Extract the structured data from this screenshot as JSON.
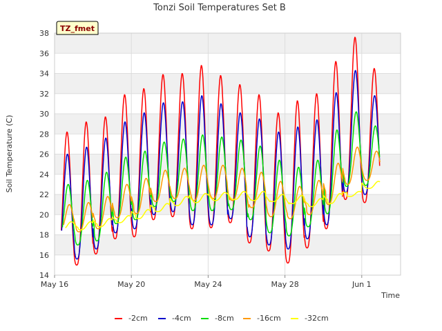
{
  "chart_data": {
    "type": "line",
    "title": "Tonzi Soil Temperatures Set B",
    "xlabel": "Time",
    "ylabel": "Soil Temperature (C)",
    "ylim": [
      14,
      38
    ],
    "xlim": [
      0,
      18
    ],
    "y_ticks": [
      14,
      16,
      18,
      20,
      22,
      24,
      26,
      28,
      30,
      32,
      34,
      36,
      38
    ],
    "x_ticks": [
      {
        "value": 0,
        "label": "May 16"
      },
      {
        "value": 4,
        "label": "May 20"
      },
      {
        "value": 8,
        "label": "May 24"
      },
      {
        "value": 12,
        "label": "May 28"
      },
      {
        "value": 16,
        "label": "Jun 1"
      }
    ],
    "grid": true,
    "legend_position": "bottom",
    "badge": "TZ_fmet",
    "series": [
      {
        "name": "-2cm",
        "color": "#ff0000",
        "daily_max": [
          28.2,
          29.2,
          29.7,
          31.9,
          32.5,
          33.9,
          34.0,
          34.8,
          33.8,
          32.9,
          31.9,
          30.1,
          31.3,
          32.0,
          35.2,
          37.6,
          34.5
        ],
        "daily_min": [
          15.6,
          15.0,
          16.1,
          17.6,
          17.8,
          19.5,
          19.8,
          18.6,
          18.7,
          19.2,
          17.2,
          16.4,
          15.2,
          16.7,
          18.6,
          21.5,
          21.2
        ]
      },
      {
        "name": "-4cm",
        "color": "#0000cc",
        "daily_max": [
          26.0,
          26.7,
          27.6,
          29.2,
          30.1,
          31.1,
          31.2,
          31.8,
          31.0,
          30.1,
          29.5,
          28.2,
          28.7,
          29.4,
          32.1,
          34.3,
          31.8
        ],
        "daily_min": [
          16.2,
          15.6,
          16.6,
          18.2,
          18.6,
          20.0,
          20.3,
          19.0,
          19.0,
          19.6,
          17.8,
          17.0,
          16.6,
          17.6,
          19.0,
          22.2,
          22.0
        ]
      },
      {
        "name": "-8cm",
        "color": "#00dd00",
        "daily_max": [
          23.0,
          23.4,
          24.2,
          25.7,
          26.3,
          27.2,
          27.5,
          27.9,
          27.7,
          27.4,
          26.8,
          25.4,
          24.7,
          25.4,
          28.4,
          30.2,
          28.8
        ],
        "daily_min": [
          17.5,
          17.0,
          17.4,
          19.1,
          19.5,
          20.8,
          21.3,
          20.4,
          20.4,
          20.5,
          19.5,
          18.2,
          17.9,
          18.8,
          20.1,
          22.8,
          22.9
        ]
      },
      {
        "name": "-16cm",
        "color": "#ff9900",
        "daily_max": [
          21.0,
          21.2,
          21.8,
          23.0,
          23.6,
          24.4,
          24.6,
          24.9,
          24.9,
          24.6,
          24.2,
          23.3,
          22.8,
          23.4,
          25.1,
          26.7,
          26.3
        ],
        "daily_min": [
          18.4,
          18.3,
          18.6,
          19.7,
          20.1,
          21.3,
          21.6,
          21.4,
          21.6,
          21.4,
          20.7,
          19.8,
          19.6,
          20.0,
          21.0,
          23.0,
          23.4
        ]
      },
      {
        "name": "-32cm",
        "color": "#ffff00",
        "daily_max": [
          19.3,
          19.3,
          19.6,
          19.9,
          20.5,
          21.1,
          21.8,
          22.1,
          22.2,
          22.3,
          22.3,
          22.0,
          21.9,
          21.6,
          22.1,
          22.3,
          23.3
        ],
        "daily_min": [
          18.5,
          18.5,
          18.8,
          19.2,
          19.6,
          20.3,
          20.9,
          21.2,
          21.4,
          21.5,
          21.4,
          21.3,
          21.1,
          20.8,
          21.1,
          21.8,
          22.6
        ]
      }
    ]
  }
}
